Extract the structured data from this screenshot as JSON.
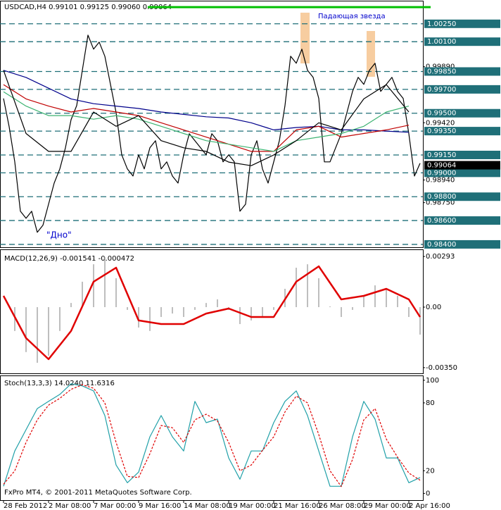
{
  "chart_data": [
    {
      "type": "line",
      "title": "USDCAD,H4  0.99101 0.99125 0.99060 0.99064",
      "annotations": [
        "Падающая звезда",
        "\"Дно\""
      ],
      "xlim": [
        -1.25,
        149
      ],
      "ylim": [
        0.9837,
        1.0042
      ],
      "yticks": [
        {
          "value": 0.9989,
          "label": "0.99890"
        },
        {
          "value": 0.9942,
          "label": "0.99420"
        },
        {
          "value": 0.9894,
          "label": "0.98940"
        },
        {
          "value": 0.9875,
          "label": "0.98750"
        }
      ],
      "levels": [
        {
          "value": 1.0025,
          "label": "1.00250"
        },
        {
          "value": 1.001,
          "label": "1.00100"
        },
        {
          "value": 0.9985,
          "label": "0.99850"
        },
        {
          "value": 0.997,
          "label": "0.99700"
        },
        {
          "value": 0.995,
          "label": "0.99500"
        },
        {
          "value": 0.9935,
          "label": "0.99350"
        },
        {
          "value": 0.9915,
          "label": "0.99150"
        },
        {
          "value": 0.99,
          "label": "0.99000"
        },
        {
          "value": 0.988,
          "label": "0.98800"
        },
        {
          "value": 0.986,
          "label": "0.98600"
        },
        {
          "value": 0.984,
          "label": "0.98400"
        }
      ],
      "level_color": "#1f6f78",
      "last_price": 0.99064,
      "top_line": 1.0039,
      "top_line_color": "#00c000",
      "series": [
        {
          "kind": "line",
          "color": "#000000",
          "x": [
            0,
            2,
            4,
            6,
            8,
            10,
            12,
            14,
            16,
            18,
            20,
            22,
            24,
            26,
            28,
            30,
            32,
            34,
            36,
            38,
            40,
            42,
            44,
            46,
            48,
            50,
            52,
            54,
            56,
            58,
            60,
            62,
            64,
            66,
            68,
            70,
            72,
            74,
            76,
            78,
            80,
            82,
            84,
            86,
            88,
            90,
            92,
            94,
            96,
            98,
            100,
            102,
            104,
            106,
            108,
            110,
            112,
            114,
            116,
            118,
            120,
            122,
            124,
            126,
            128,
            130,
            132,
            134,
            136,
            138,
            140,
            142,
            144,
            146,
            148
          ],
          "values": [
            0.99624,
            0.99387,
            0.99092,
            0.98678,
            0.98619,
            0.98678,
            0.98501,
            0.9856,
            0.98737,
            0.98914,
            0.99033,
            0.9921,
            0.99446,
            0.99564,
            0.9986,
            1.00155,
            1.00037,
            1.00096,
            0.99978,
            0.99742,
            0.99505,
            0.99151,
            0.99033,
            0.98973,
            0.99151,
            0.99033,
            0.9921,
            0.99269,
            0.99033,
            0.99092,
            0.98973,
            0.98914,
            0.99151,
            0.99328,
            0.99269,
            0.9921,
            0.99151,
            0.99328,
            0.99269,
            0.99092,
            0.99151,
            0.99092,
            0.98678,
            0.98737,
            0.99151,
            0.99269,
            0.99033,
            0.98914,
            0.99092,
            0.99269,
            0.99564,
            0.99978,
            0.99919,
            1.00037,
            0.9986,
            0.99801,
            0.99624,
            0.99092,
            0.99092,
            0.9921,
            0.99328,
            0.99505,
            0.99683,
            0.99801,
            0.99742,
            0.9986,
            0.99919,
            0.99683,
            0.99742,
            0.99801,
            0.99683,
            0.99624,
            0.99328,
            0.98973,
            0.9908
          ]
        },
        {
          "kind": "line",
          "color": "#00008b",
          "x": [
            0,
            8,
            16,
            24,
            32,
            40,
            48,
            56,
            64,
            72,
            80,
            88,
            96,
            104,
            112,
            120,
            128,
            136,
            144
          ],
          "values": [
            0.9986,
            0.998,
            0.9971,
            0.9962,
            0.9958,
            0.9956,
            0.9954,
            0.9951,
            0.9949,
            0.9947,
            0.9946,
            0.9942,
            0.9936,
            0.9938,
            0.9939,
            0.9936,
            0.9936,
            0.9935,
            0.9934
          ]
        },
        {
          "kind": "line",
          "color": "#c00000",
          "x": [
            0,
            8,
            16,
            24,
            32,
            40,
            48,
            56,
            64,
            72,
            80,
            88,
            96,
            104,
            112,
            120,
            128,
            136,
            144
          ],
          "values": [
            0.9974,
            0.9962,
            0.9956,
            0.9951,
            0.9954,
            0.9951,
            0.9948,
            0.9942,
            0.9936,
            0.993,
            0.9924,
            0.9918,
            0.9918,
            0.9936,
            0.9939,
            0.993,
            0.9933,
            0.9936,
            0.994
          ]
        },
        {
          "kind": "line",
          "color": "#3cb371",
          "x": [
            0,
            8,
            16,
            24,
            32,
            40,
            48,
            56,
            64,
            72,
            80,
            88,
            96,
            104,
            112,
            120,
            128,
            136,
            144
          ],
          "values": [
            0.9968,
            0.9956,
            0.9948,
            0.9948,
            0.9945,
            0.9948,
            0.9945,
            0.9939,
            0.9933,
            0.9927,
            0.9924,
            0.9921,
            0.9918,
            0.9927,
            0.993,
            0.9933,
            0.9939,
            0.9951,
            0.9956
          ]
        },
        {
          "kind": "line",
          "color": "#000000",
          "x": [
            0,
            8,
            16,
            24,
            32,
            40,
            48,
            56,
            64,
            72,
            80,
            88,
            96,
            104,
            112,
            120,
            128,
            136,
            144
          ],
          "values": [
            0.9986,
            0.9933,
            0.9918,
            0.9918,
            0.9951,
            0.9939,
            0.9948,
            0.9927,
            0.9921,
            0.9918,
            0.9909,
            0.9906,
            0.9915,
            0.9927,
            0.9942,
            0.9936,
            0.9962,
            0.9974,
            0.9951
          ]
        }
      ]
    },
    {
      "type": "line",
      "title": "MACD(12,26,9) -0.001541 -0.000472",
      "xlim": [
        -1.25,
        149
      ],
      "ylim": [
        -0.00383,
        0.0033
      ],
      "yticks": [
        0.00293,
        {
          "value": 0,
          "label": "0.00"
        },
        {
          "value": -0.0035,
          "label": "-0.00350"
        }
      ],
      "series": [
        {
          "kind": "histogram",
          "color": "#a9a9a9",
          "x": [
            0,
            4,
            8,
            12,
            16,
            20,
            24,
            28,
            32,
            36,
            40,
            44,
            48,
            52,
            56,
            60,
            64,
            68,
            72,
            76,
            80,
            84,
            88,
            92,
            96,
            100,
            104,
            108,
            112,
            116,
            120,
            124,
            128,
            132,
            136,
            140,
            144,
            148
          ],
          "values": [
            0,
            -0.00138,
            -0.0026,
            -0.00322,
            -0.00281,
            -0.00138,
            0.00024,
            0.00147,
            0.00248,
            0.00289,
            0.00167,
            -0.00016,
            -0.00118,
            -0.00138,
            -0.00057,
            -0.00037,
            -0.00057,
            -0.00016,
            0.00024,
            0.00045,
            -0.00016,
            -0.00098,
            -0.00077,
            -0.00057,
            -0.00016,
            0.00106,
            0.00228,
            0.00248,
            0.00167,
            4e-05,
            -0.00057,
            -0.00016,
            0.00065,
            0.00126,
            0.00106,
            0.00065,
            -0.00057,
            -0.00159
          ]
        },
        {
          "kind": "line",
          "color": "#e00000",
          "width": 2.5,
          "x": [
            0,
            8,
            16,
            24,
            32,
            40,
            48,
            56,
            64,
            72,
            80,
            88,
            96,
            104,
            112,
            120,
            128,
            136,
            144,
            148
          ],
          "values": [
            0.00065,
            -0.00179,
            -0.00301,
            -0.00138,
            0.00147,
            0.00228,
            -0.00077,
            -0.00098,
            -0.00098,
            -0.00037,
            -8e-05,
            -0.00057,
            -0.00057,
            0.00147,
            0.00236,
            0.00045,
            0.00065,
            0.00106,
            0.00045,
            -0.00057
          ]
        }
      ]
    },
    {
      "type": "line",
      "title": "Stoch(13,3,3) 14.0240 11.6316",
      "annotation": "FxPro MT4, © 2001-2011 MetaQuotes Software Corp.",
      "xlim": [
        -1.25,
        149
      ],
      "ylim": [
        -6,
        103
      ],
      "yticks": [
        100,
        80,
        20,
        0
      ],
      "xticks": [
        {
          "value": 0,
          "label": "28 Feb 2012"
        },
        {
          "value": 16,
          "label": "2 Mar 08:00"
        },
        {
          "value": 32,
          "label": "7 Mar 00:00"
        },
        {
          "value": 48,
          "label": "9 Mar 16:00"
        },
        {
          "value": 64,
          "label": "14 Mar 08:00"
        },
        {
          "value": 80,
          "label": "19 Mar 00:00"
        },
        {
          "value": 96,
          "label": "21 Mar 16:00"
        },
        {
          "value": 112,
          "label": "26 Mar 08:00"
        },
        {
          "value": 128,
          "label": "29 Mar 00:00"
        },
        {
          "value": 144,
          "label": "2 Apr 16:00"
        }
      ],
      "series": [
        {
          "kind": "line",
          "color": "#20a0a8",
          "x": [
            0,
            4,
            8,
            12,
            16,
            20,
            24,
            28,
            32,
            36,
            40,
            44,
            48,
            52,
            56,
            60,
            64,
            68,
            72,
            76,
            80,
            84,
            88,
            92,
            96,
            100,
            104,
            108,
            112,
            116,
            120,
            124,
            128,
            132,
            136,
            140,
            144,
            148
          ],
          "values": [
            6.3,
            37.5,
            56.3,
            75,
            81.3,
            87.5,
            96.9,
            95,
            90.6,
            68.8,
            25,
            9.4,
            18.8,
            50,
            68.8,
            50,
            37.5,
            81.3,
            62.5,
            65.6,
            31.3,
            12.5,
            37.5,
            37.5,
            62.5,
            81.3,
            90.6,
            68.8,
            37.5,
            6.3,
            6.3,
            50,
            81.3,
            65.6,
            31.3,
            31.3,
            9.4,
            14
          ]
        },
        {
          "kind": "line",
          "color": "#e00000",
          "dash": true,
          "x": [
            0,
            4,
            8,
            12,
            16,
            20,
            24,
            28,
            32,
            36,
            40,
            44,
            48,
            52,
            56,
            60,
            64,
            68,
            72,
            76,
            80,
            84,
            88,
            92,
            96,
            100,
            104,
            108,
            112,
            116,
            120,
            124,
            128,
            132,
            136,
            140,
            144,
            148
          ],
          "values": [
            8,
            20,
            45,
            65,
            78,
            84,
            92,
            96,
            93,
            80,
            45,
            15,
            14,
            35,
            60,
            58,
            45,
            65,
            70,
            64,
            45,
            20,
            25,
            38,
            50,
            72,
            86,
            80,
            52,
            20,
            6,
            30,
            65,
            75,
            48,
            32,
            18,
            11.6
          ]
        }
      ]
    }
  ]
}
